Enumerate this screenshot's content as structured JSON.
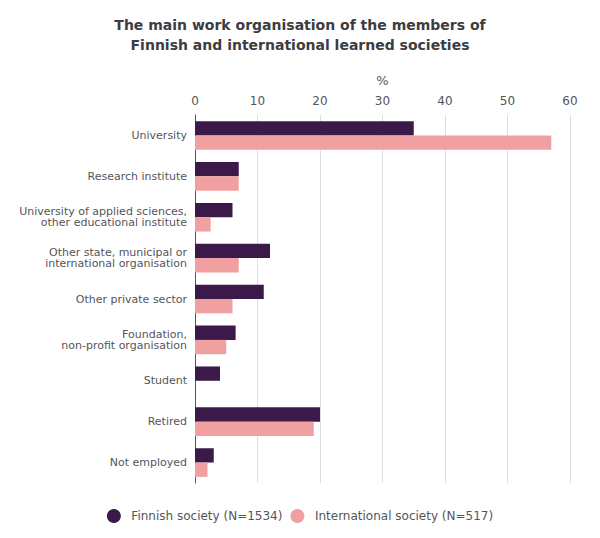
{
  "chart_data": {
    "type": "bar",
    "orientation": "horizontal",
    "title": "The main work organisation of the members of\nFinnish and international learned societies",
    "categories": [
      "University",
      "Research institute",
      "University of applied sciences,\nother educational institute",
      "Other state, municipal or\ninternational organisation",
      "Other private sector",
      "Foundation,\nnon-profit organisation",
      "Student",
      "Retired",
      "Not employed"
    ],
    "series": [
      {
        "name": "Finnish society (N=1534)",
        "color": "#3b1a4a",
        "values": [
          35,
          7,
          6,
          12,
          11,
          6.5,
          4,
          20,
          3
        ]
      },
      {
        "name": "International society (N=517)",
        "color": "#f0a0a0",
        "values": [
          57,
          7,
          2.5,
          7,
          6,
          5,
          0,
          19,
          2
        ]
      }
    ],
    "xlabel": "%",
    "xlim": [
      0,
      60
    ],
    "xticks": [
      0,
      10,
      20,
      30,
      40,
      50,
      60
    ],
    "grid": true,
    "legend": "bottom"
  }
}
